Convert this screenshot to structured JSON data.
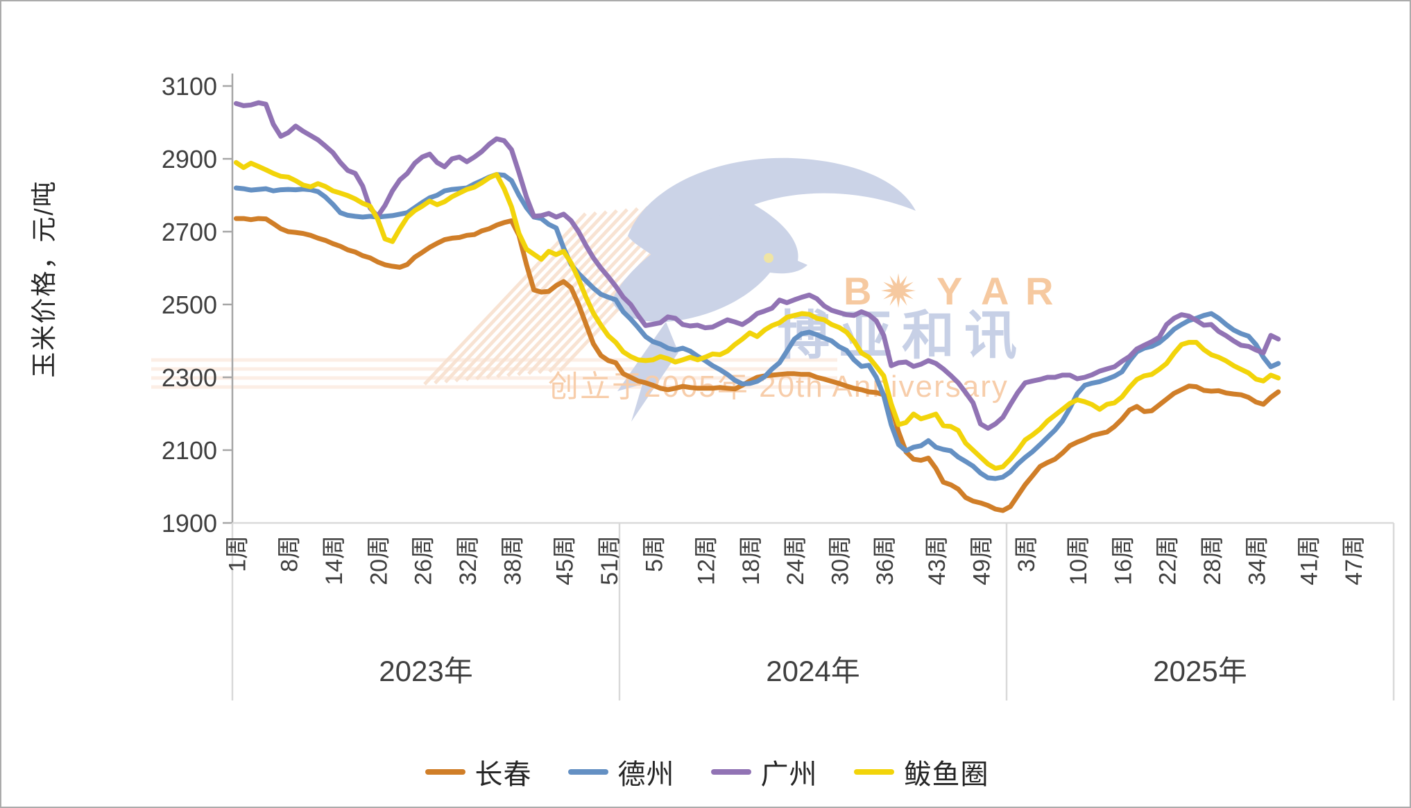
{
  "window": {
    "background": "#FFFFFF",
    "border_color": "#ABABAB"
  },
  "watermark": {
    "brand": "BOYAR",
    "brand_cn": "博亚和讯",
    "tagline": "创立于2005年 20th Anniversary",
    "brand_color": "#F6C79B",
    "brand_cn_color": "#C5CEE5",
    "tagline_color": "#F7CBA6",
    "bird_color": "#C9D1E6",
    "stripe_color": "#F8DFCC"
  },
  "chart_data": {
    "type": "line",
    "title": "",
    "ylabel": "玉米价格，元/吨",
    "ylim": [
      1900,
      3100
    ],
    "yticks": [
      3100,
      2900,
      2700,
      2500,
      2300,
      2100,
      1900
    ],
    "grid": false,
    "legend_position": "bottom",
    "axis_color": "#A6A6A6",
    "baseline_color": "#D9D9D9",
    "tick_label_color": "#3F3F3F",
    "x_axis": {
      "week_suffix": "周",
      "groups": [
        {
          "label": "2023年",
          "weeks_in_year": 52,
          "tick_weeks": [
            1,
            8,
            14,
            20,
            26,
            32,
            38,
            45,
            51
          ]
        },
        {
          "label": "2024年",
          "weeks_in_year": 52,
          "tick_weeks": [
            5,
            12,
            18,
            24,
            30,
            36,
            43,
            49
          ]
        },
        {
          "label": "2025年",
          "weeks_in_year": 52,
          "tick_weeks": [
            3,
            10,
            16,
            22,
            28,
            34,
            41,
            47
          ]
        }
      ]
    },
    "series": [
      {
        "name": "长春",
        "color": "#D07E28",
        "values_2023": [
          2736,
          2736,
          2733,
          2736,
          2735,
          2722,
          2708,
          2700,
          2698,
          2695,
          2690,
          2682,
          2676,
          2667,
          2660,
          2650,
          2644,
          2634,
          2628,
          2617,
          2609,
          2605,
          2602,
          2610,
          2630,
          2643,
          2657,
          2668,
          2678,
          2682,
          2684,
          2690,
          2692,
          2702,
          2708,
          2718,
          2725,
          2730,
          2690,
          2610,
          2540,
          2534,
          2536,
          2552,
          2563,
          2546,
          2500,
          2446,
          2392,
          2360,
          2346,
          2340
        ],
        "values_2024": [
          2310,
          2300,
          2290,
          2285,
          2278,
          2270,
          2266,
          2270,
          2275,
          2272,
          2270,
          2270,
          2270,
          2272,
          2270,
          2268,
          2278,
          2290,
          2300,
          2304,
          2306,
          2308,
          2310,
          2310,
          2308,
          2308,
          2300,
          2295,
          2289,
          2283,
          2276,
          2270,
          2266,
          2260,
          2258,
          2252,
          2220,
          2150,
          2095,
          2075,
          2072,
          2078,
          2050,
          2012,
          2005,
          1993,
          1970,
          1960,
          1955,
          1948,
          1938,
          1934
        ],
        "values_2025": [
          1945,
          1975,
          2005,
          2030,
          2055,
          2066,
          2075,
          2092,
          2112,
          2122,
          2130,
          2140,
          2145,
          2150,
          2165,
          2185,
          2210,
          2220,
          2206,
          2208,
          2224,
          2240,
          2256,
          2266,
          2276,
          2274,
          2264,
          2262,
          2263,
          2257,
          2254,
          2252,
          2245,
          2232,
          2226,
          2245,
          2260
        ]
      },
      {
        "name": "德州",
        "color": "#6490C3",
        "values_2023": [
          2820,
          2818,
          2814,
          2816,
          2818,
          2812,
          2815,
          2816,
          2815,
          2817,
          2815,
          2810,
          2795,
          2775,
          2752,
          2745,
          2742,
          2740,
          2742,
          2740,
          2742,
          2744,
          2748,
          2752,
          2766,
          2780,
          2793,
          2800,
          2812,
          2816,
          2818,
          2820,
          2831,
          2840,
          2850,
          2857,
          2855,
          2840,
          2800,
          2766,
          2740,
          2736,
          2720,
          2710,
          2655,
          2610,
          2585,
          2565,
          2545,
          2528,
          2520,
          2513
        ],
        "values_2024": [
          2480,
          2460,
          2437,
          2412,
          2398,
          2391,
          2380,
          2375,
          2380,
          2372,
          2358,
          2346,
          2332,
          2321,
          2308,
          2292,
          2282,
          2283,
          2289,
          2302,
          2323,
          2340,
          2372,
          2405,
          2420,
          2424,
          2417,
          2408,
          2400,
          2384,
          2374,
          2348,
          2330,
          2333,
          2300,
          2250,
          2170,
          2115,
          2098,
          2108,
          2112,
          2126,
          2108,
          2102,
          2098,
          2081,
          2069,
          2056,
          2037,
          2024,
          2022,
          2026
        ],
        "values_2025": [
          2040,
          2062,
          2080,
          2096,
          2115,
          2135,
          2155,
          2180,
          2215,
          2255,
          2278,
          2284,
          2288,
          2295,
          2303,
          2315,
          2345,
          2370,
          2380,
          2385,
          2395,
          2412,
          2432,
          2445,
          2456,
          2462,
          2470,
          2475,
          2462,
          2445,
          2430,
          2420,
          2413,
          2390,
          2355,
          2329,
          2338
        ]
      },
      {
        "name": "广州",
        "color": "#9173B4",
        "values_2023": [
          3052,
          3046,
          3048,
          3054,
          3050,
          2995,
          2962,
          2972,
          2990,
          2976,
          2964,
          2952,
          2935,
          2917,
          2890,
          2868,
          2860,
          2825,
          2765,
          2742,
          2772,
          2812,
          2842,
          2860,
          2888,
          2905,
          2913,
          2890,
          2878,
          2900,
          2905,
          2892,
          2905,
          2920,
          2940,
          2955,
          2950,
          2925,
          2862,
          2795,
          2742,
          2744,
          2750,
          2740,
          2748,
          2730,
          2700,
          2662,
          2628,
          2600,
          2576,
          2550
        ],
        "values_2024": [
          2520,
          2500,
          2470,
          2442,
          2446,
          2450,
          2466,
          2462,
          2445,
          2441,
          2443,
          2436,
          2438,
          2448,
          2458,
          2452,
          2445,
          2458,
          2475,
          2482,
          2490,
          2512,
          2505,
          2513,
          2520,
          2526,
          2516,
          2496,
          2484,
          2478,
          2472,
          2470,
          2480,
          2472,
          2455,
          2415,
          2332,
          2340,
          2342,
          2330,
          2336,
          2346,
          2338,
          2323,
          2305,
          2285,
          2258,
          2230,
          2172,
          2160,
          2172,
          2190
        ],
        "values_2025": [
          2225,
          2258,
          2285,
          2290,
          2294,
          2300,
          2300,
          2306,
          2306,
          2296,
          2300,
          2307,
          2317,
          2323,
          2329,
          2344,
          2357,
          2378,
          2388,
          2398,
          2410,
          2445,
          2462,
          2472,
          2468,
          2456,
          2443,
          2445,
          2426,
          2414,
          2400,
          2388,
          2385,
          2375,
          2367,
          2415,
          2405
        ]
      },
      {
        "name": "鲅鱼圈",
        "color": "#F2D40A",
        "values_2023": [
          2890,
          2876,
          2888,
          2879,
          2870,
          2860,
          2852,
          2850,
          2840,
          2828,
          2823,
          2832,
          2824,
          2812,
          2806,
          2799,
          2790,
          2778,
          2770,
          2735,
          2680,
          2673,
          2708,
          2740,
          2758,
          2770,
          2784,
          2774,
          2782,
          2796,
          2806,
          2816,
          2822,
          2834,
          2848,
          2857,
          2818,
          2768,
          2695,
          2652,
          2638,
          2624,
          2646,
          2637,
          2646,
          2614,
          2570,
          2520,
          2476,
          2443,
          2414,
          2396
        ],
        "values_2024": [
          2370,
          2357,
          2348,
          2346,
          2348,
          2357,
          2351,
          2342,
          2348,
          2355,
          2348,
          2355,
          2364,
          2362,
          2372,
          2390,
          2405,
          2422,
          2412,
          2430,
          2442,
          2450,
          2465,
          2470,
          2475,
          2473,
          2462,
          2458,
          2445,
          2437,
          2424,
          2400,
          2367,
          2355,
          2330,
          2304,
          2227,
          2170,
          2176,
          2199,
          2186,
          2192,
          2199,
          2167,
          2165,
          2154,
          2119,
          2100,
          2081,
          2062,
          2050,
          2054
        ],
        "values_2025": [
          2075,
          2100,
          2128,
          2142,
          2158,
          2180,
          2196,
          2212,
          2228,
          2238,
          2233,
          2225,
          2212,
          2226,
          2230,
          2246,
          2272,
          2294,
          2304,
          2308,
          2322,
          2338,
          2366,
          2390,
          2396,
          2396,
          2376,
          2362,
          2355,
          2345,
          2332,
          2322,
          2312,
          2295,
          2290,
          2306,
          2298
        ]
      }
    ]
  }
}
